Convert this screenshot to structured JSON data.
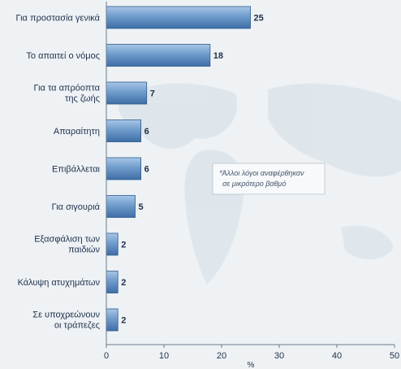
{
  "chart_data": {
    "type": "bar",
    "orientation": "horizontal",
    "categories": [
      "Για προστασία γενικά",
      "Το απαιτεί ο νόμος",
      "Για τα απρόοπτα της ζωής",
      "Απαραίτητη",
      "Επιβάλλεται",
      "Για σιγουριά",
      "Εξασφάλιση των παιδιών",
      "Κάλυψη ατυχημάτων",
      "Σε υποχρεώνουν οι τράπεζες"
    ],
    "values": [
      25,
      18,
      7,
      6,
      6,
      5,
      2,
      2,
      2
    ],
    "data_labels": [
      "25",
      "18",
      "7",
      "6",
      "6",
      "5",
      "2",
      "2",
      "2"
    ],
    "xlim": [
      0,
      50
    ],
    "xticks": [
      "0",
      "10",
      "20",
      "30",
      "40",
      "50"
    ],
    "xlabel": "%",
    "ylabel": "",
    "title": "",
    "grid": false,
    "annotation": [
      "*Άλλοι λόγοι αναφέρθηκαν",
      "σε μικρότερο βαθμό"
    ],
    "colors": {
      "bar": "#4f7fb8",
      "bar_highlight": "#a9c6e6",
      "bar_edge": "#2e5a8c",
      "text": "#1f2f4a",
      "background": "#eef2f5",
      "map": "#dde5ec"
    }
  }
}
